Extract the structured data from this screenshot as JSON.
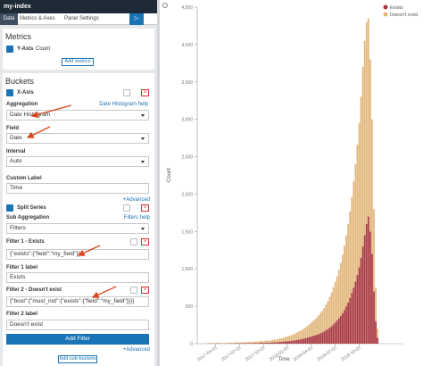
{
  "header": {
    "title": "my-index"
  },
  "tabs": [
    "Data",
    "Metrics & Axes",
    "Panel Settings"
  ],
  "metrics": {
    "title": "Metrics",
    "agg_label": "Y-Axis",
    "agg_type": "Count",
    "add_button": "Add metrics"
  },
  "buckets": {
    "title": "Buckets",
    "x_axis": {
      "label": "X-Axis",
      "aggregation_label": "Aggregation",
      "help": "Date Histogram help",
      "aggregation": "Date Histogram",
      "field_label": "Field",
      "field": "Date",
      "interval_label": "Interval",
      "interval": "Auto",
      "custom_label_label": "Custom Label",
      "custom_label": "Time",
      "advanced": "+Advanced"
    },
    "split_series": {
      "label": "Split Series",
      "sub_aggregation_label": "Sub Aggregation",
      "help": "Filters help",
      "sub_aggregation": "Filters",
      "filters": [
        {
          "title": "Filter 1 - Exists",
          "query": "{\"exists\":{\"field\":\"my_field\"}}",
          "label_title": "Filter 1 label",
          "label": "Exists"
        },
        {
          "title": "Filter 2 - Doesn't exist",
          "query": "{\"bool\":{\"must_not\":{\"exists\":{\"field\":\"my_field\"}}}}",
          "label_title": "Filter 2 label",
          "label": "Doesn't exist"
        }
      ],
      "add_filter": "Add Filter",
      "advanced": "+Advanced"
    },
    "add_sub_buckets": "Add sub-buckets"
  },
  "chart_data": {
    "type": "stacked-bar",
    "x_label": "Time",
    "y_label": "Count",
    "legend": "top-right",
    "grid": false,
    "xlim": [
      14,
      126
    ],
    "xticks": [
      {
        "value": 24,
        "label": "2017-04-01"
      },
      {
        "value": 37,
        "label": "2017-07-01"
      },
      {
        "value": 50,
        "label": "2017-10-01"
      },
      {
        "value": 63,
        "label": "2018-01-01"
      },
      {
        "value": 76,
        "label": "2018-04-01"
      },
      {
        "value": 89,
        "label": "2018-07-01"
      },
      {
        "value": 102,
        "label": "2018-10-01"
      }
    ],
    "ylim": [
      0,
      4500
    ],
    "yticks": [
      0,
      500,
      {
        "value": 1000,
        "label": "1,000"
      },
      {
        "value": 1500,
        "label": "1,500"
      },
      {
        "value": 2000,
        "label": "2,000"
      },
      {
        "value": 2500,
        "label": "2,500"
      },
      {
        "value": 3000,
        "label": "3,000"
      },
      {
        "value": 3500,
        "label": "3,500"
      },
      {
        "value": 4000,
        "label": "4,000"
      },
      {
        "value": 4500,
        "label": "4,500"
      }
    ],
    "x": [
      18,
      19,
      20,
      21,
      22,
      23,
      24,
      25,
      26,
      27,
      28,
      29,
      30,
      31,
      32,
      33,
      34,
      35,
      36,
      37,
      38,
      39,
      40,
      41,
      42,
      43,
      44,
      45,
      46,
      47,
      48,
      49,
      50,
      51,
      52,
      53,
      54,
      55,
      56,
      57,
      58,
      59,
      60,
      61,
      62,
      63,
      64,
      65,
      66,
      67,
      68,
      69,
      70,
      71,
      72,
      73,
      74,
      75,
      76,
      77,
      78,
      79,
      80,
      81,
      82,
      83,
      84,
      85,
      86,
      87,
      88,
      89,
      90,
      91,
      92,
      93,
      94,
      95,
      96,
      97,
      98,
      99,
      100,
      101,
      102,
      103,
      104,
      105,
      106,
      107,
      108,
      109,
      110,
      111,
      112
    ],
    "series": [
      {
        "name": "Exists",
        "color": "#a8363f",
        "values": [
          2,
          1,
          3,
          2,
          4,
          3,
          2,
          5,
          3,
          4,
          2,
          3,
          3,
          4,
          5,
          3,
          4,
          6,
          5,
          4,
          6,
          5,
          7,
          6,
          7,
          8,
          6,
          9,
          10,
          8,
          11,
          12,
          10,
          13,
          14,
          12,
          15,
          17,
          19,
          18,
          22,
          25,
          24,
          28,
          30,
          33,
          35,
          38,
          42,
          45,
          50,
          55,
          58,
          64,
          70,
          76,
          82,
          90,
          98,
          105,
          112,
          120,
          130,
          140,
          150,
          165,
          180,
          195,
          215,
          235,
          260,
          285,
          310,
          340,
          370,
          410,
          450,
          500,
          550,
          610,
          680,
          750,
          830,
          920,
          1020,
          1150,
          1300,
          1450,
          1600,
          1700,
          1500,
          1200,
          700,
          300,
          80
        ]
      },
      {
        "name": "Doesn't exist",
        "color": "#e2b77c",
        "values": [
          4,
          3,
          6,
          5,
          8,
          6,
          5,
          9,
          7,
          6,
          5,
          8,
          7,
          9,
          8,
          10,
          9,
          11,
          12,
          10,
          13,
          12,
          14,
          13,
          15,
          17,
          16,
          19,
          20,
          18,
          22,
          24,
          21,
          26,
          28,
          25,
          30,
          34,
          38,
          36,
          44,
          48,
          46,
          55,
          58,
          64,
          70,
          74,
          80,
          88,
          96,
          105,
          112,
          120,
          132,
          145,
          158,
          170,
          185,
          200,
          215,
          230,
          250,
          270,
          290,
          315,
          345,
          375,
          410,
          450,
          495,
          540,
          590,
          650,
          710,
          780,
          860,
          950,
          1050,
          1160,
          1280,
          1420,
          1570,
          1740,
          1930,
          2150,
          2400,
          2600,
          2700,
          2650,
          2300,
          1800,
          1100,
          450,
          120
        ]
      }
    ]
  }
}
